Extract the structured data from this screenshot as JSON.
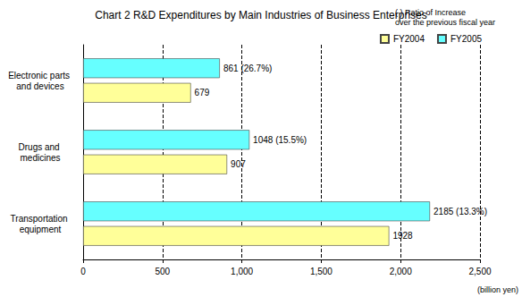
{
  "chart_data": {
    "type": "bar",
    "orientation": "horizontal",
    "title": "Chart 2 R&D Expenditures by Main Industries of Business Enterprises",
    "annotation": "( ) Ratio of Increase\nover the previous fiscal year",
    "xlabel": "(billion yen)",
    "categories": [
      "Electronic parts and devices",
      "Drugs and medicines",
      "Transportation equipment"
    ],
    "series": [
      {
        "name": "FY2004",
        "color": "#ffff99",
        "values": [
          679,
          907,
          1928
        ]
      },
      {
        "name": "FY2005",
        "color": "#66ffff",
        "values": [
          861,
          1048,
          2185
        ],
        "value_labels": [
          "861 (26.7%)",
          "1048 (15.5%)",
          "2185 (13.3%)"
        ]
      }
    ],
    "xlim": [
      0,
      2500
    ],
    "xticks": [
      0,
      500,
      {
        "value": 1000,
        "label": "1,000"
      },
      {
        "value": 1500,
        "label": "1,500"
      },
      {
        "value": 2000,
        "label": "2,000"
      },
      {
        "value": 2500,
        "label": "2,500"
      }
    ],
    "grid": true,
    "legend": "upper right",
    "data_labels": true
  }
}
